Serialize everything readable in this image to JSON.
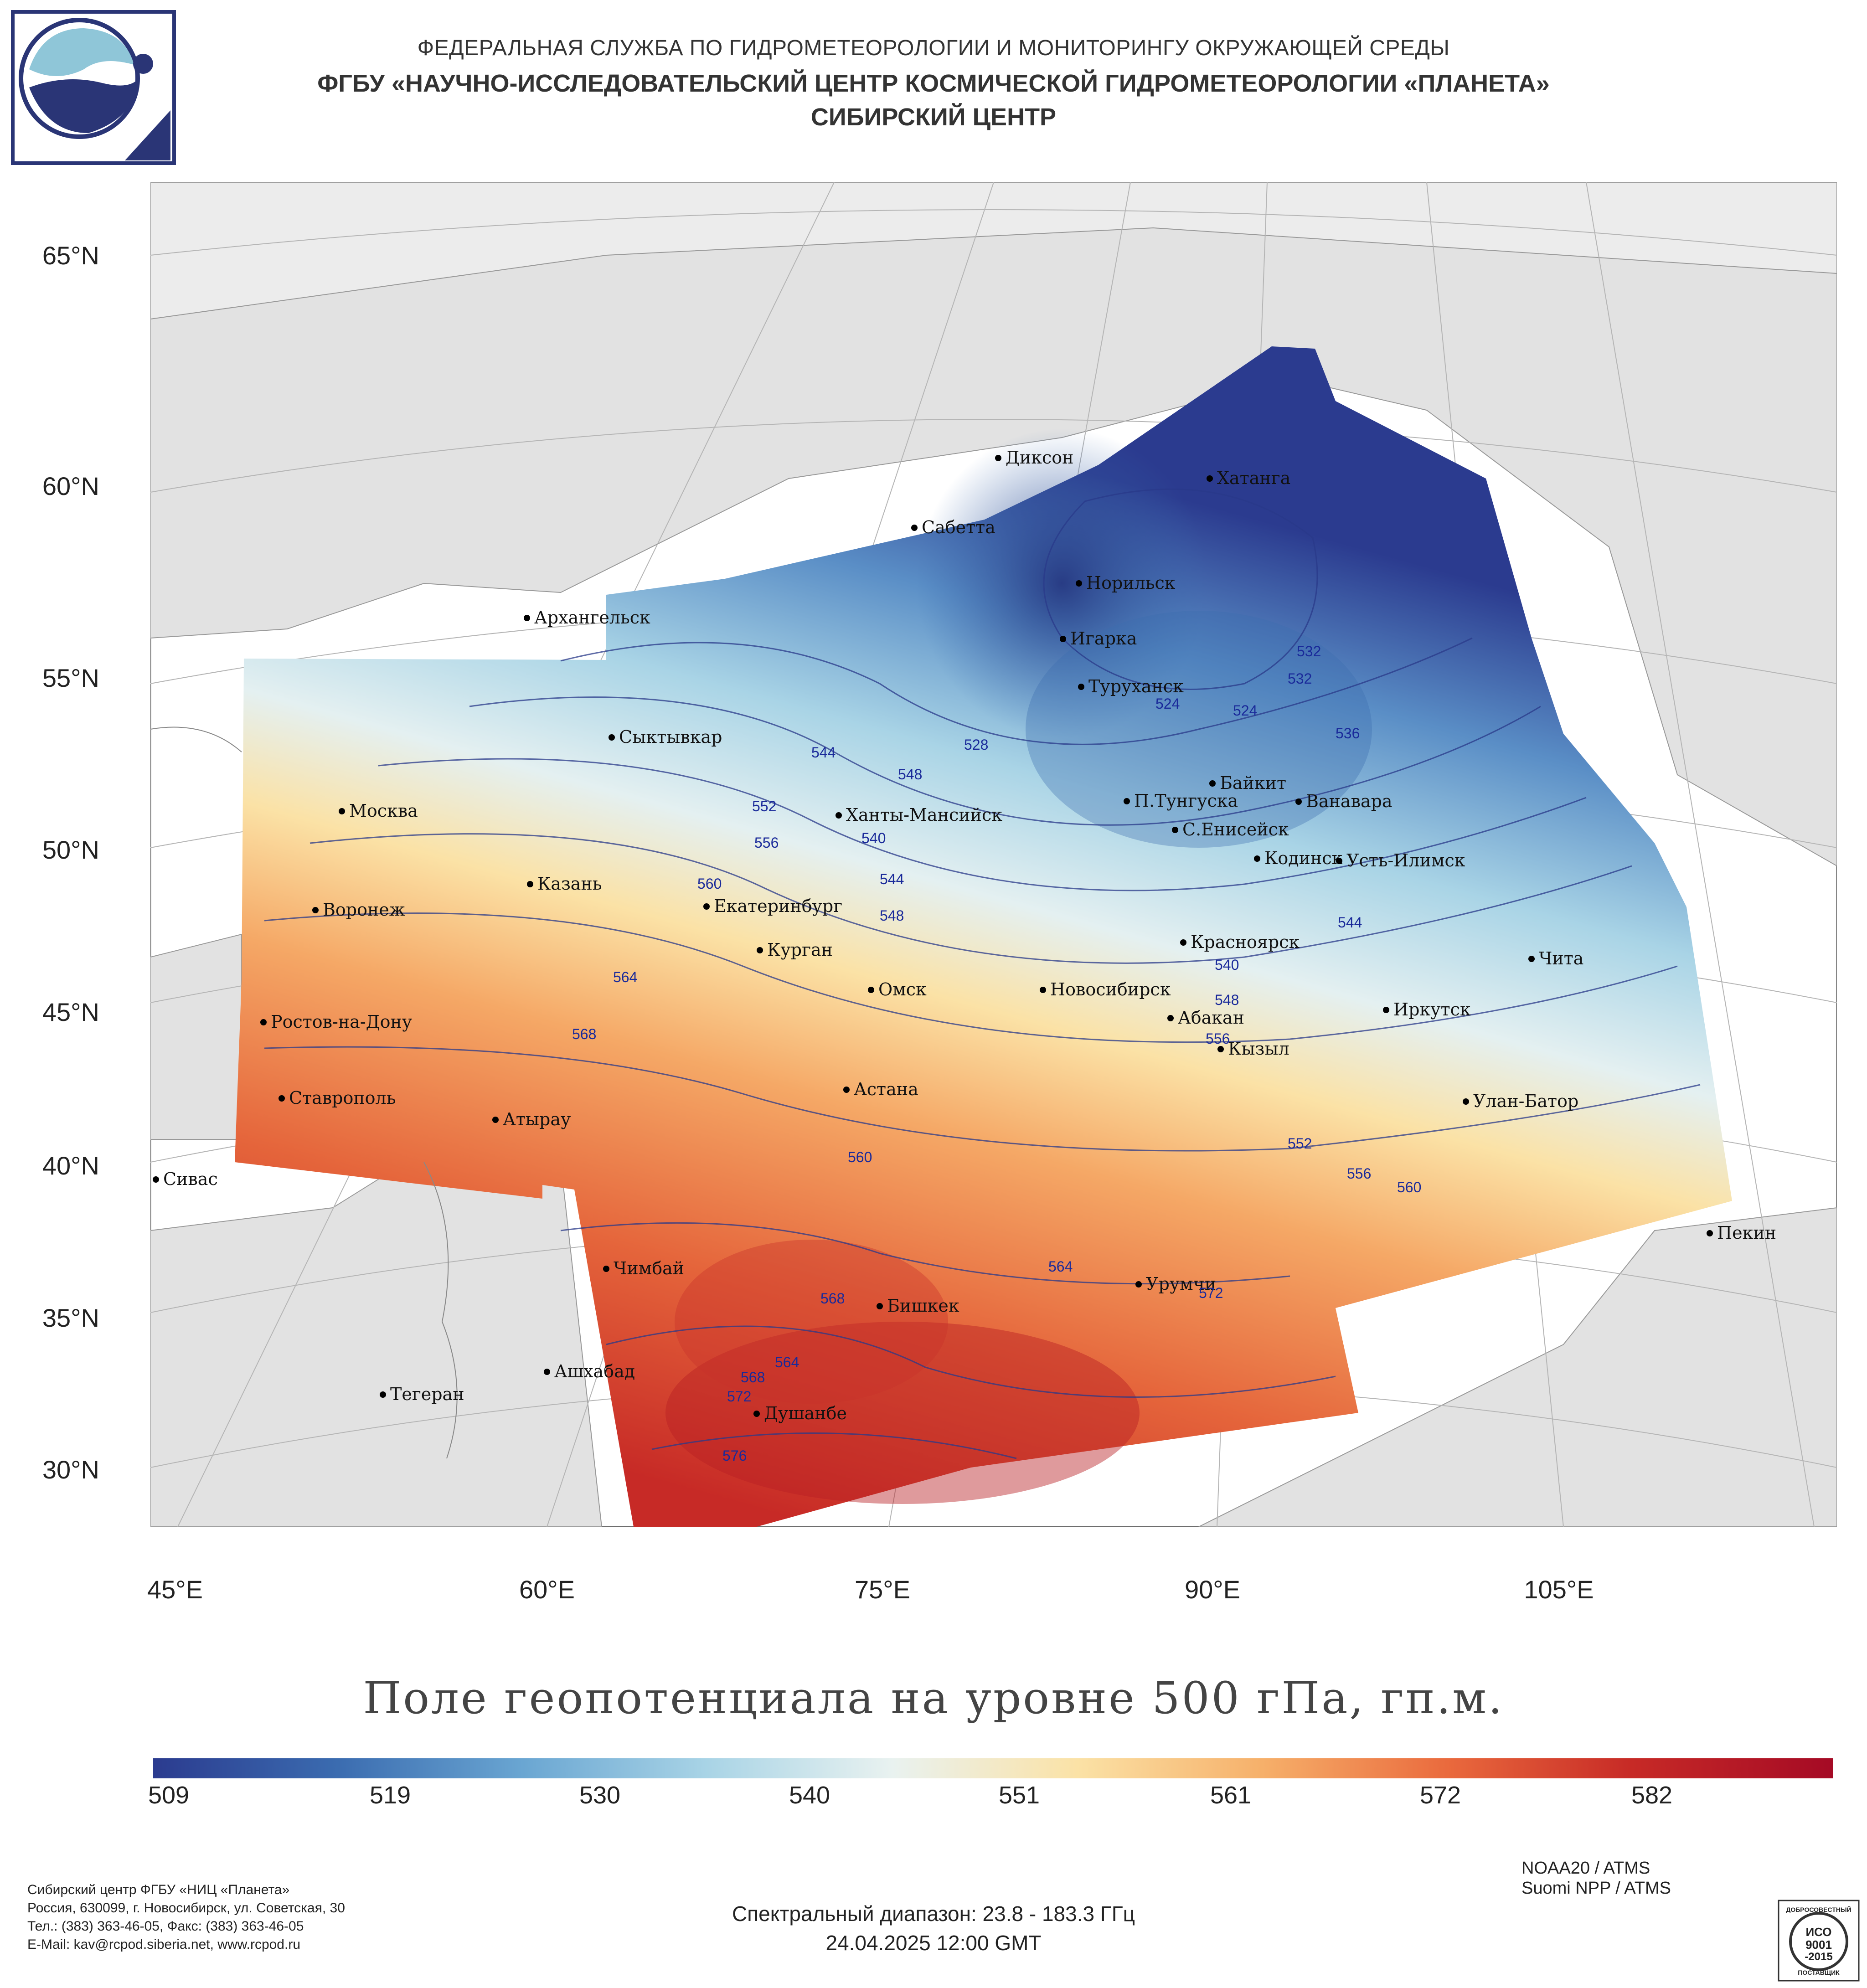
{
  "header": {
    "line1": "ФЕДЕРАЛЬНАЯ СЛУЖБА ПО ГИДРОМЕТЕОРОЛОГИИ И МОНИТОРИНГУ ОКРУЖАЮЩЕЙ СРЕДЫ",
    "line2": "ФГБУ «НАУЧНО-ИССЛЕДОВАТЕЛЬСКИЙ ЦЕНТР КОСМИЧЕСКОЙ ГИДРОМЕТЕОРОЛОГИИ «ПЛАНЕТА»",
    "line3": "СИБИРСКИЙ ЦЕНТР"
  },
  "map": {
    "lat_labels": [
      "65°N",
      "60°N",
      "55°N",
      "50°N",
      "45°N",
      "40°N",
      "35°N",
      "30°N"
    ],
    "lon_labels": [
      "45°E",
      "60°E",
      "75°E",
      "90°E",
      "105°E"
    ],
    "cities": [
      "Диксон",
      "Хатанга",
      "Сабетта",
      "Норильск",
      "Архангельск",
      "Игарка",
      "Туруханск",
      "Сыктывкар",
      "Байкит",
      "Ханты-Мансийск",
      "П.Тунгуска",
      "Ванавара",
      "Москва",
      "С.Енисейск",
      "Кодинск",
      "Усть-Илимск",
      "Казань",
      "Екатеринбург",
      "Воронеж",
      "Курган",
      "Красноярск",
      "Чита",
      "Омск",
      "Новосибирск",
      "Иркутск",
      "Абакан",
      "Ростов-на-Дону",
      "Кызыл",
      "Астана",
      "Ставрополь",
      "Улан-Батор",
      "Атырау",
      "Сивас",
      "Пекин",
      "Чимбай",
      "Урумчи",
      "Бишкек",
      "Ашхабад",
      "Тегеран",
      "Душанбе"
    ],
    "contour_labels": [
      "528",
      "532",
      "524",
      "524",
      "532",
      "536",
      "544",
      "548",
      "552",
      "556",
      "540",
      "544",
      "548",
      "560",
      "564",
      "568",
      "540",
      "544",
      "548",
      "556",
      "552",
      "556",
      "560",
      "560",
      "564",
      "568",
      "572",
      "564",
      "568",
      "572",
      "576"
    ]
  },
  "title": "Поле геопотенциала на уровне 500 гПа, гп.м.",
  "colorbar": {
    "ticks": [
      "509",
      "519",
      "530",
      "540",
      "551",
      "561",
      "572",
      "582"
    ],
    "colors": [
      "#2b3b8f",
      "#3b6cb0",
      "#6aa6d2",
      "#a9d4e6",
      "#e9f2f0",
      "#fbe2a6",
      "#f6b06a",
      "#ea6a3d",
      "#c72a26",
      "#a50a25"
    ]
  },
  "footer": {
    "org": [
      "Сибирский центр ФГБУ «НИЦ «Планета»",
      "Россия, 630099, г. Новосибирск, ул. Советская, 30",
      "Тел.: (383) 363-46-05, Факс: (383) 363-46-05",
      "E-Mail: kav@rcpod.siberia.net, www.rcpod.ru"
    ],
    "spectral": "Спектральный диапазон: 23.8 - 183.3 ГГц",
    "datetime": "24.04.2025 12:00 GMT",
    "satellites": [
      "NOAA20 / ATMS",
      "Suomi NPP / ATMS"
    ],
    "iso": [
      "ДОБРОСОВЕСТНЫЙ",
      "ИСО",
      "9001",
      "-2015",
      "ПОСТАВЩИК"
    ]
  }
}
